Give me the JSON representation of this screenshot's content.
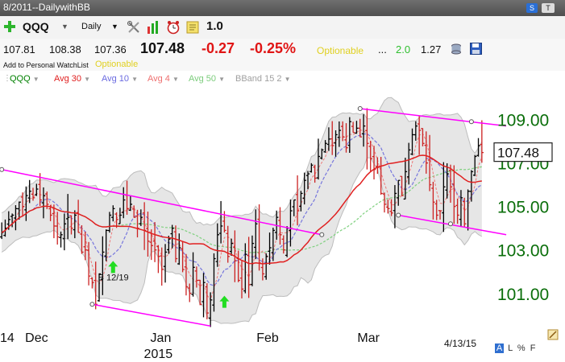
{
  "window": {
    "title": "8/2011--DailywithBB",
    "btn_s": "S",
    "btn_t": "T"
  },
  "toolbar": {
    "add_icon": "plus-icon",
    "symbol": "QQQ",
    "period": "Daily",
    "tools_icon": "tools-icon",
    "bar_icon": "bar-chart-icon",
    "clock_icon": "alarm-clock-icon",
    "note_icon": "note-icon",
    "zoom_value": "1.0"
  },
  "quote": {
    "open": "107.81",
    "high": "108.38",
    "low": "107.36",
    "last": "107.48",
    "change": "-0.27",
    "change_pct": "-0.25%",
    "optionable": "Optionable",
    "dots": "...",
    "val_green": "2.0",
    "val_dark": "1.27",
    "add_watchlist": "Add to Personal WatchList",
    "optionable_small": "Optionable"
  },
  "legend": [
    {
      "label": "QQQ",
      "color": "#008000"
    },
    {
      "label": "Avg 30",
      "color": "#e02020"
    },
    {
      "label": "Avg 10",
      "color": "#6a6ae0"
    },
    {
      "label": "Avg 4",
      "color": "#ee7070"
    },
    {
      "label": "Avg 50",
      "color": "#7ccc7c"
    },
    {
      "label": "BBand 15 2",
      "color": "#a0a0a0"
    }
  ],
  "colors": {
    "up": "#000000",
    "down": "#cc2222",
    "avg30": "#e02020",
    "avg10": "#7777dd",
    "avg4": "#ee7777",
    "avg50": "#7fd07f",
    "band_fill": "#e6e6e6",
    "band_line": "#bdbdbd",
    "trend": "#ff00ff",
    "price_axis": "#0a6e0a",
    "arrow": "#22dd22"
  },
  "chart_data": {
    "type": "ohlc",
    "title": "",
    "ylim": [
      99.4,
      110.5
    ],
    "y_ticks": [
      101.0,
      103.0,
      105.0,
      107.0,
      109.0
    ],
    "y_tick_labels": [
      "101.00",
      "103.00",
      "105.00",
      "107.00",
      "109.00"
    ],
    "last_price_label": "107.48",
    "x_labels": [
      {
        "label": "14",
        "index": -1.5
      },
      {
        "label": "Dec",
        "index": 9.5
      },
      {
        "label": "Jan",
        "index": 45.5
      },
      {
        "label": "Feb",
        "index": 76
      },
      {
        "label": "Mar",
        "index": 105
      }
    ],
    "year_label": "2015",
    "year_index": 45.5,
    "date_label": "4/13/15",
    "annotation": {
      "label": "B 12/19",
      "index": 30,
      "price": 101.6
    },
    "buy_arrows": [
      {
        "index": 32,
        "price": 102.2
      },
      {
        "index": 64,
        "price": 100.6
      }
    ],
    "closes": [
      103.8,
      104.0,
      104.4,
      104.6,
      104.9,
      105.2,
      105.0,
      105.5,
      105.7,
      105.4,
      105.8,
      105.3,
      105.5,
      105.1,
      104.6,
      104.1,
      103.6,
      103.7,
      104.2,
      104.5,
      104.0,
      104.6,
      103.8,
      102.9,
      103.0,
      101.8,
      101.5,
      100.5,
      101.9,
      102.9,
      103.9,
      104.6,
      104.9,
      104.4,
      104.6,
      105.3,
      104.9,
      105.1,
      104.5,
      104.0,
      104.5,
      103.9,
      103.4,
      103.2,
      103.0,
      102.7,
      102.1,
      102.9,
      103.5,
      104.0,
      102.6,
      103.1,
      102.1,
      101.3,
      101.0,
      102.2,
      101.6,
      100.5,
      101.5,
      100.1,
      100.7,
      102.6,
      103.7,
      104.1,
      103.9,
      102.7,
      103.3,
      102.5,
      101.6,
      101.2,
      102.8,
      101.4,
      103.3,
      104.2,
      102.4,
      101.9,
      102.7,
      103.1,
      103.9,
      104.5,
      103.7,
      103.0,
      104.0,
      104.8,
      105.3,
      104.8,
      105.6,
      106.2,
      106.5,
      106.9,
      106.3,
      107.3,
      107.6,
      107.9,
      108.1,
      107.8,
      108.3,
      108.5,
      108.2,
      107.7,
      108.9,
      108.4,
      108.6,
      108.2,
      108.7,
      107.9,
      107.2,
      106.7,
      106.8,
      105.6,
      105.1,
      104.9,
      104.7,
      105.6,
      106.2,
      105.5,
      106.6,
      107.6,
      108.3,
      108.7,
      108.5,
      107.9,
      107.0,
      106.0,
      105.2,
      104.6,
      104.8,
      105.9,
      106.5,
      105.9,
      105.0,
      104.6,
      105.4,
      104.2,
      105.7,
      106.6,
      107.3,
      107.8,
      107.48
    ],
    "moving_averages": {
      "avg30": "30-day simple moving average of closes",
      "avg10": "10-day simple moving average of closes",
      "avg4": "4-day simple moving average of closes",
      "avg50": "50-day simple moving average of closes",
      "bband": "15-day, 2-sigma Bollinger Band of closes"
    },
    "trend_lines": [
      {
        "name": "upper-left",
        "p1": {
          "index": 0,
          "price": 106.7
        },
        "p2": {
          "index": 92,
          "price": 103.7
        }
      },
      {
        "name": "lower-left",
        "p1": {
          "index": 26,
          "price": 100.5
        },
        "p2": {
          "index": 60,
          "price": 99.5
        }
      },
      {
        "name": "upper-right",
        "p1": {
          "index": 103,
          "price": 109.5
        },
        "p2": {
          "index": 145,
          "price": 108.7
        }
      },
      {
        "name": "lower-right",
        "p1": {
          "index": 114,
          "price": 104.6
        },
        "p2": {
          "index": 145,
          "price": 103.7
        }
      }
    ],
    "trend_points": [
      {
        "index": 0,
        "price": 106.7
      },
      {
        "index": 26,
        "price": 100.5
      },
      {
        "index": 92,
        "price": 103.7
      },
      {
        "index": 103,
        "price": 109.5
      },
      {
        "index": 135,
        "price": 108.9
      },
      {
        "index": 114,
        "price": 104.6
      },
      {
        "index": 129,
        "price": 104.2
      }
    ]
  }
}
